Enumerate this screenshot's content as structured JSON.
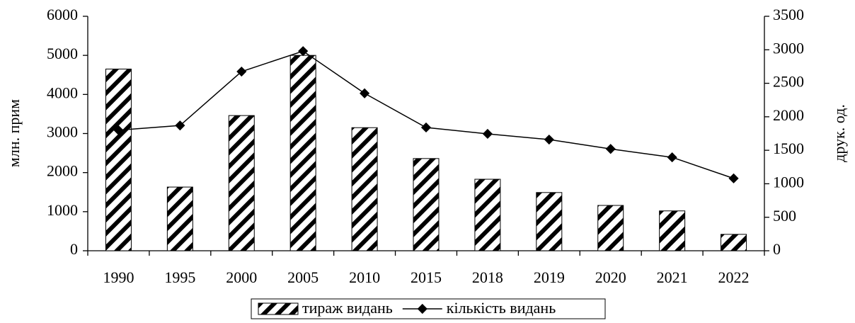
{
  "chart_data": {
    "type": "bar-line",
    "categories": [
      "1990",
      "1995",
      "2000",
      "2005",
      "2010",
      "2015",
      "2018",
      "2019",
      "2020",
      "2021",
      "2022"
    ],
    "series": [
      {
        "name": "тираж видань",
        "type": "bar",
        "color": "#000000",
        "axis": "y",
        "values": [
          4650,
          1630,
          3460,
          5000,
          3150,
          2360,
          1830,
          1490,
          1160,
          1020,
          420
        ]
      },
      {
        "name": "кількість видань",
        "type": "line",
        "color": "#000000",
        "axis": "y2",
        "values": [
          1800,
          1870,
          2675,
          2980,
          2350,
          1840,
          1745,
          1660,
          1520,
          1395,
          1080
        ]
      }
    ],
    "ylabel": "млн. прим",
    "y2label": "друк. од.",
    "ylim": [
      0,
      6000
    ],
    "yticks": [
      0,
      1000,
      2000,
      3000,
      4000,
      5000,
      6000
    ],
    "y2lim": [
      0,
      3500
    ],
    "y2ticks": [
      0,
      500,
      1000,
      1500,
      2000,
      2500,
      3000,
      3500
    ],
    "grid": false,
    "legend": "bottom"
  }
}
